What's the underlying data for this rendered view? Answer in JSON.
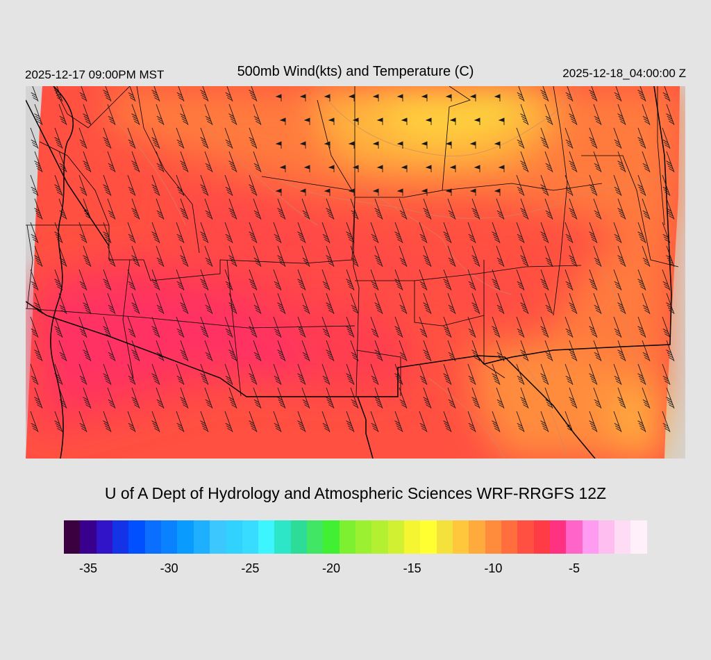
{
  "header": {
    "valid_local": "2025-12-17 09:00PM MST",
    "title": "500mb Wind(kts) and Temperature (C)",
    "valid_utc": "2025-12-18_04:00:00 Z"
  },
  "map": {
    "field": "500mb temperature (C) with wind barbs (kts)",
    "colors": {
      "background": "#d4d4d4",
      "border": "#000000",
      "contour": "#c98a6a",
      "barb": "#1a1a1a"
    }
  },
  "credit": "U of A Dept of Hydrology and Atmospheric Sciences WRF-RRGFS 12Z",
  "colorbar": {
    "min": -36,
    "max": -1,
    "step": 1,
    "tick_labels": [
      "-35",
      "-30",
      "-25",
      "-20",
      "-15",
      "-10",
      "-5"
    ],
    "colors": [
      "#3a0040",
      "#38008c",
      "#3214c8",
      "#1432e6",
      "#0050ff",
      "#0a6eff",
      "#0a82ff",
      "#0a9bff",
      "#1eb0ff",
      "#3cc8ff",
      "#32d2ff",
      "#37dcff",
      "#3cf5ff",
      "#2de6c8",
      "#2ddc96",
      "#41e664",
      "#41f032",
      "#7df032",
      "#9bf032",
      "#b4f032",
      "#d2f032",
      "#f5f532",
      "#ffff32",
      "#f5e13c",
      "#ffc83c",
      "#ffaa3c",
      "#ff8c3c",
      "#ff6e3c",
      "#ff5041",
      "#ff3c46",
      "#ff3282",
      "#ff64c8",
      "#ff9bf0",
      "#ffbef0",
      "#ffdcf5",
      "#fff0fa"
    ]
  }
}
